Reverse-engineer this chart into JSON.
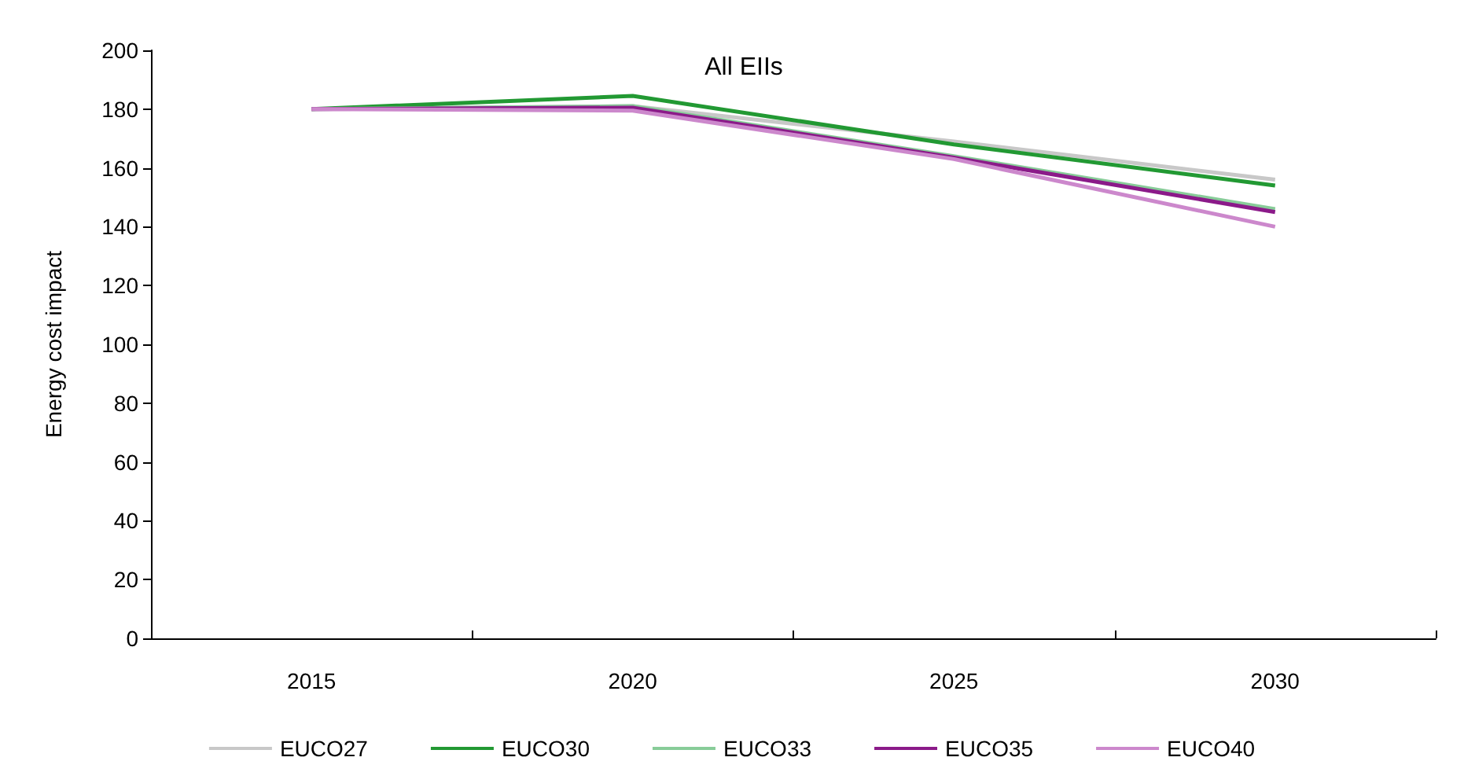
{
  "chart_data": {
    "type": "line",
    "title": "All EIIs",
    "ylabel": "Energy cost impact",
    "categories": [
      "2015",
      "2020",
      "2025",
      "2030"
    ],
    "series": [
      {
        "name": "EUCO27",
        "color": "#c8c8c8",
        "values": [
          180,
          181,
          169,
          156
        ]
      },
      {
        "name": "EUCO30",
        "color": "#229933",
        "values": [
          180,
          184.5,
          168,
          154
        ]
      },
      {
        "name": "EUCO33",
        "color": "#88cc99",
        "values": [
          180,
          181,
          164,
          146
        ]
      },
      {
        "name": "EUCO35",
        "color": "#8b1a89",
        "values": [
          180,
          180.5,
          163.5,
          145
        ]
      },
      {
        "name": "EUCO40",
        "color": "#cc88cc",
        "values": [
          180,
          179.5,
          163,
          140
        ]
      }
    ],
    "ylim": [
      0,
      200
    ],
    "yticks": [
      0,
      20,
      40,
      60,
      80,
      100,
      120,
      140,
      160,
      180,
      200
    ],
    "grid": false,
    "legend": "bottom",
    "marker": "none",
    "line_style": "solid"
  }
}
